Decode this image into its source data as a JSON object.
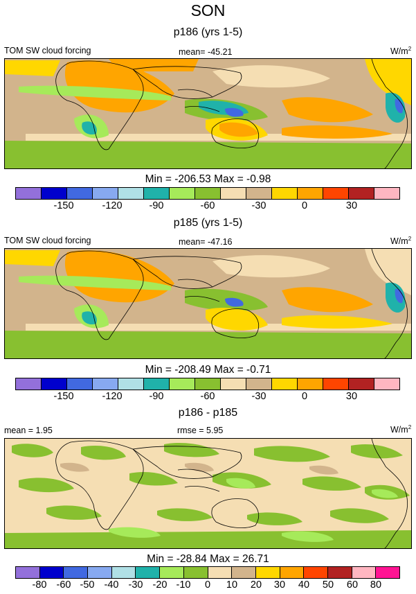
{
  "title": "SON",
  "panels": [
    {
      "subtitle": "p186 (yrs 1-5)",
      "left_label": "TOM SW cloud forcing",
      "center_label": "mean= -45.21",
      "unit": "W/m",
      "unit_sup": "2",
      "minmax": "Min = -206.53 Max =  -0.98",
      "ticks": [
        "-150",
        "-120",
        "-90",
        "-60",
        "-30",
        "0",
        "30"
      ]
    },
    {
      "subtitle": "p185 (yrs 1-5)",
      "left_label": "TOM SW cloud forcing",
      "center_label": "mean= -47.16",
      "unit": "W/m",
      "unit_sup": "2",
      "minmax": "Min = -208.49 Max =  -0.71",
      "ticks": [
        "-150",
        "-120",
        "-90",
        "-60",
        "-30",
        "0",
        "30"
      ]
    },
    {
      "subtitle": "p186 - p185",
      "left_label": "mean =   1.95",
      "center_label": "rmse =   5.95",
      "unit": "W/m",
      "unit_sup": "2",
      "minmax": "Min = -28.84 Max =  26.71",
      "ticks": [
        "-80",
        "-60",
        "-50",
        "-40",
        "-30",
        "-20",
        "-10",
        "0",
        "10",
        "20",
        "30",
        "40",
        "50",
        "60",
        "80"
      ]
    }
  ],
  "colors": {
    "palette": [
      "#9370db",
      "#0000cd",
      "#4169e1",
      "#87a9f0",
      "#b0e0e6",
      "#20b2aa",
      "#a6ea5a",
      "#88c030",
      "#f5deb3",
      "#d2b48c",
      "#ffd700",
      "#ffa500",
      "#ff4500",
      "#b22222",
      "#ffb6c1",
      "#ff1493"
    ]
  }
}
